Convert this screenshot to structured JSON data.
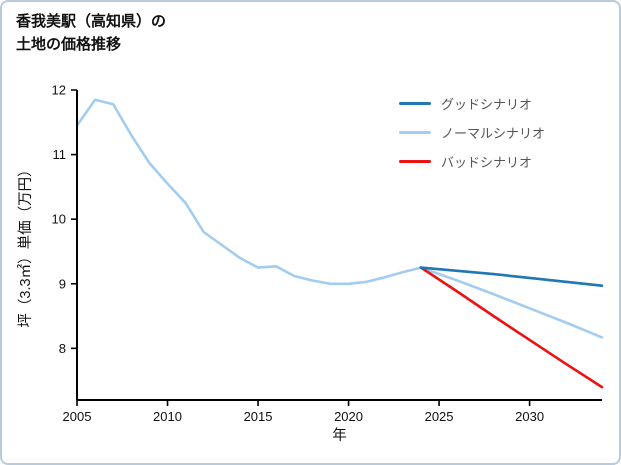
{
  "page": {
    "title_line1": "香我美駅（高知県）の",
    "title_line2": "土地の価格推移"
  },
  "legend": {
    "items": [
      {
        "label": "グッドシナリオ",
        "color": "#1f77b4"
      },
      {
        "label": "ノーマルシナリオ",
        "color": "#a3cdf0"
      },
      {
        "label": "バッドシナリオ",
        "color": "#ee1111"
      }
    ]
  },
  "chart_data": {
    "type": "line",
    "title": "香我美駅（高知県）の土地の価格推移",
    "xlabel": "年",
    "ylabel": "坪（3.3㎡）単価（万円）",
    "xlim": [
      2005,
      2034
    ],
    "ylim": [
      7.2,
      12
    ],
    "xticks": [
      2005,
      2010,
      2015,
      2020,
      2025,
      2030
    ],
    "yticks": [
      8,
      9,
      10,
      11,
      12
    ],
    "grid": false,
    "legend_position": "upper right",
    "axis_color": "#000000",
    "series": [
      {
        "name": "ノーマルシナリオ",
        "color": "#a3cdf0",
        "x": [
          2005,
          2006,
          2007,
          2008,
          2009,
          2010,
          2011,
          2012,
          2013,
          2014,
          2015,
          2016,
          2017,
          2018,
          2019,
          2020,
          2021,
          2022,
          2023,
          2024,
          2026,
          2028,
          2030,
          2032,
          2034
        ],
        "values": [
          11.45,
          11.85,
          11.78,
          11.3,
          10.87,
          10.55,
          10.25,
          9.8,
          9.6,
          9.4,
          9.25,
          9.27,
          9.12,
          9.05,
          9.0,
          9.0,
          9.03,
          9.1,
          9.18,
          9.25,
          9.05,
          8.84,
          8.62,
          8.4,
          8.17
        ]
      },
      {
        "name": "バッドシナリオ",
        "color": "#ee1111",
        "x": [
          2024,
          2026,
          2028,
          2030,
          2032,
          2034
        ],
        "values": [
          9.25,
          8.88,
          8.5,
          8.13,
          7.76,
          7.4
        ]
      },
      {
        "name": "グッドシナリオ",
        "color": "#1f77b4",
        "x": [
          2024,
          2026,
          2028,
          2030,
          2032,
          2034
        ],
        "values": [
          9.25,
          9.2,
          9.15,
          9.09,
          9.03,
          8.97
        ]
      }
    ]
  }
}
